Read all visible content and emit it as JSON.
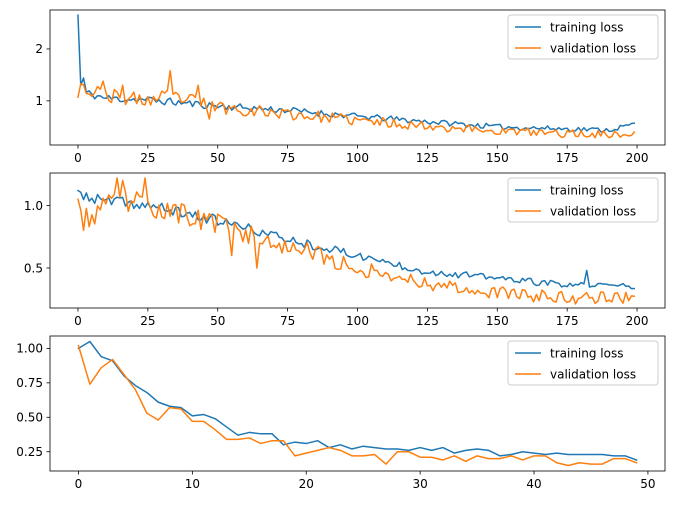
{
  "chart_data": [
    {
      "type": "line",
      "title": "",
      "xlabel": "",
      "ylabel": "",
      "xlim": [
        -10,
        210
      ],
      "ylim": [
        0.15,
        2.75
      ],
      "xticks": [
        0,
        25,
        50,
        75,
        100,
        125,
        150,
        175,
        200
      ],
      "yticks": [
        1,
        2
      ],
      "grid": false,
      "legend": "top-right",
      "epochs": 200,
      "series": [
        {
          "name": "training loss",
          "color": "#1f77b4",
          "keypoints": [
            [
              0,
              2.65
            ],
            [
              1,
              1.3
            ],
            [
              2,
              1.42
            ],
            [
              3,
              1.15
            ],
            [
              10,
              1.05
            ],
            [
              25,
              1.02
            ],
            [
              50,
              0.9
            ],
            [
              75,
              0.82
            ],
            [
              100,
              0.7
            ],
            [
              125,
              0.6
            ],
            [
              150,
              0.5
            ],
            [
              175,
              0.46
            ],
            [
              190,
              0.44
            ],
            [
              199,
              0.55
            ]
          ],
          "noise": 0.05,
          "seed": 11
        },
        {
          "name": "validation loss",
          "color": "#ff7f0e",
          "keypoints": [
            [
              0,
              1.07
            ],
            [
              1,
              1.33
            ],
            [
              3,
              1.2
            ],
            [
              10,
              1.1
            ],
            [
              25,
              1.0
            ],
            [
              33,
              1.1
            ],
            [
              50,
              0.88
            ],
            [
              75,
              0.75
            ],
            [
              100,
              0.62
            ],
            [
              125,
              0.52
            ],
            [
              150,
              0.42
            ],
            [
              175,
              0.37
            ],
            [
              199,
              0.35
            ]
          ],
          "noise": 0.09,
          "seed": 23,
          "spikes": [
            [
              33,
              1.58
            ],
            [
              9,
              1.38
            ],
            [
              16,
              1.3
            ],
            [
              43,
              1.3
            ],
            [
              47,
              0.65
            ]
          ]
        }
      ]
    },
    {
      "type": "line",
      "title": "",
      "xlabel": "",
      "ylabel": "",
      "xlim": [
        -10,
        210
      ],
      "ylim": [
        0.18,
        1.26
      ],
      "xticks": [
        0,
        25,
        50,
        75,
        100,
        125,
        150,
        175,
        200
      ],
      "yticks": [
        0.5,
        1.0
      ],
      "ytick_labels": [
        "0.5",
        "1.0"
      ],
      "grid": false,
      "legend": "top-right",
      "epochs": 200,
      "series": [
        {
          "name": "training loss",
          "color": "#1f77b4",
          "keypoints": [
            [
              0,
              1.12
            ],
            [
              5,
              1.05
            ],
            [
              25,
              1.0
            ],
            [
              50,
              0.88
            ],
            [
              75,
              0.73
            ],
            [
              100,
              0.6
            ],
            [
              125,
              0.47
            ],
            [
              150,
              0.42
            ],
            [
              175,
              0.36
            ],
            [
              199,
              0.36
            ]
          ],
          "noise": 0.03,
          "seed": 37,
          "spikes": [
            [
              182,
              0.48
            ]
          ]
        },
        {
          "name": "validation loss",
          "color": "#ff7f0e",
          "keypoints": [
            [
              0,
              1.05
            ],
            [
              2,
              0.88
            ],
            [
              15,
              1.05
            ],
            [
              25,
              1.0
            ],
            [
              50,
              0.85
            ],
            [
              75,
              0.68
            ],
            [
              100,
              0.5
            ],
            [
              125,
              0.38
            ],
            [
              150,
              0.3
            ],
            [
              175,
              0.26
            ],
            [
              199,
              0.27
            ]
          ],
          "noise": 0.065,
          "seed": 53,
          "spikes": [
            [
              14,
              1.22
            ],
            [
              16,
              1.2
            ],
            [
              24,
              1.22
            ],
            [
              55,
              0.6
            ],
            [
              64,
              0.5
            ]
          ]
        }
      ]
    },
    {
      "type": "line",
      "title": "",
      "xlabel": "",
      "ylabel": "",
      "xlim": [
        -2.5,
        51.5
      ],
      "ylim": [
        0.11,
        1.09
      ],
      "xticks": [
        0,
        10,
        20,
        30,
        40,
        50
      ],
      "yticks": [
        0.25,
        0.5,
        0.75,
        1.0
      ],
      "ytick_labels": [
        "0.25",
        "0.50",
        "0.75",
        "1.00"
      ],
      "grid": false,
      "legend": "top-right",
      "series": [
        {
          "name": "training loss",
          "color": "#1f77b4",
          "x": [
            0,
            1,
            2,
            3,
            4,
            5,
            6,
            7,
            8,
            9,
            10,
            11,
            12,
            13,
            14,
            15,
            16,
            17,
            18,
            19,
            20,
            21,
            22,
            23,
            24,
            25,
            26,
            27,
            28,
            29,
            30,
            31,
            32,
            33,
            34,
            35,
            36,
            37,
            38,
            39,
            40,
            41,
            42,
            43,
            44,
            45,
            46,
            47,
            48,
            49
          ],
          "y": [
            1.0,
            1.05,
            0.94,
            0.91,
            0.8,
            0.73,
            0.68,
            0.61,
            0.58,
            0.57,
            0.51,
            0.52,
            0.49,
            0.43,
            0.37,
            0.39,
            0.38,
            0.38,
            0.3,
            0.32,
            0.31,
            0.33,
            0.28,
            0.3,
            0.27,
            0.29,
            0.28,
            0.27,
            0.27,
            0.26,
            0.28,
            0.26,
            0.28,
            0.24,
            0.26,
            0.27,
            0.26,
            0.22,
            0.23,
            0.25,
            0.24,
            0.23,
            0.24,
            0.23,
            0.23,
            0.23,
            0.23,
            0.22,
            0.22,
            0.19
          ]
        },
        {
          "name": "validation loss",
          "color": "#ff7f0e",
          "x": [
            0,
            1,
            2,
            3,
            4,
            5,
            6,
            7,
            8,
            9,
            10,
            11,
            12,
            13,
            14,
            15,
            16,
            17,
            18,
            19,
            20,
            21,
            22,
            23,
            24,
            25,
            26,
            27,
            28,
            29,
            30,
            31,
            32,
            33,
            34,
            35,
            36,
            37,
            38,
            39,
            40,
            41,
            42,
            43,
            44,
            45,
            46,
            47,
            48,
            49
          ],
          "y": [
            1.02,
            0.74,
            0.86,
            0.92,
            0.81,
            0.7,
            0.53,
            0.48,
            0.57,
            0.56,
            0.47,
            0.47,
            0.41,
            0.34,
            0.34,
            0.35,
            0.31,
            0.33,
            0.33,
            0.22,
            0.24,
            0.26,
            0.28,
            0.26,
            0.22,
            0.22,
            0.23,
            0.16,
            0.25,
            0.25,
            0.21,
            0.21,
            0.19,
            0.22,
            0.18,
            0.22,
            0.2,
            0.2,
            0.22,
            0.19,
            0.22,
            0.22,
            0.17,
            0.15,
            0.17,
            0.16,
            0.16,
            0.2,
            0.2,
            0.17
          ]
        }
      ]
    }
  ]
}
